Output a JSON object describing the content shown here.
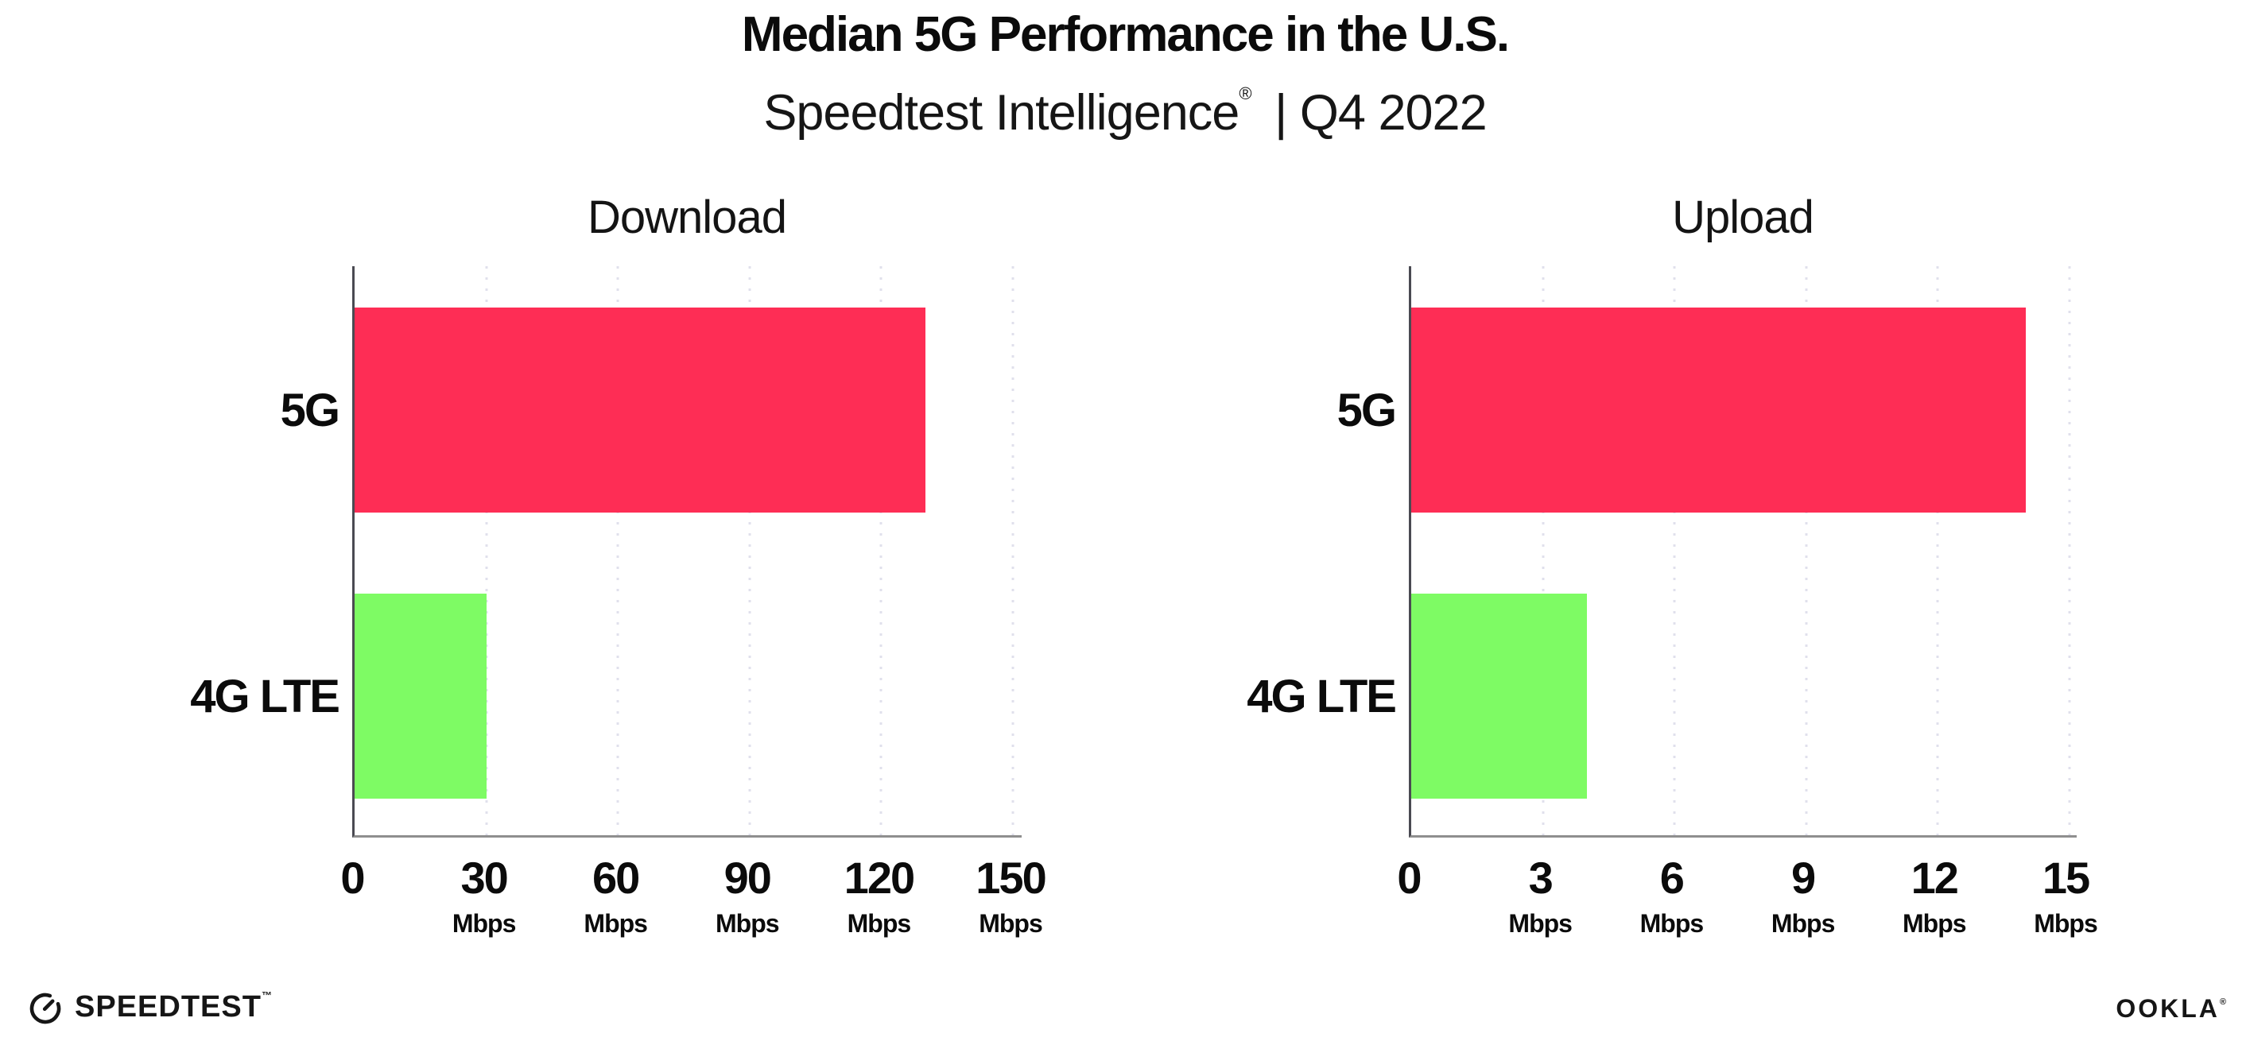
{
  "header": {
    "title": "Median 5G Performance in the U.S.",
    "subtitle_brand": "Speedtest Intelligence",
    "subtitle_reg": "®",
    "subtitle_rest": "| Q4 2022"
  },
  "colors": {
    "bar_5g": "#FE2D55",
    "bar_4g_lte": "#7EFB64",
    "axis_x": "#8F8F8F",
    "axis_y": "#4A4A52",
    "gridline": "#E0E0EC",
    "text": "#0B0B0B"
  },
  "chart_data": [
    {
      "type": "bar",
      "orientation": "horizontal",
      "title": "Download",
      "unit": "Mbps",
      "categories": [
        "5G",
        "4G LTE"
      ],
      "values": [
        130,
        30
      ],
      "xlim": [
        0,
        150
      ],
      "xticks": [
        0,
        30,
        60,
        90,
        120,
        150
      ],
      "bar_colors": [
        "#FE2D55",
        "#7EFB64"
      ],
      "grid": "dotted-vertical",
      "legend": "none"
    },
    {
      "type": "bar",
      "orientation": "horizontal",
      "title": "Upload",
      "unit": "Mbps",
      "categories": [
        "5G",
        "4G LTE"
      ],
      "values": [
        14,
        4
      ],
      "xlim": [
        0,
        15
      ],
      "xticks": [
        0,
        3,
        6,
        9,
        12,
        15
      ],
      "bar_colors": [
        "#FE2D55",
        "#7EFB64"
      ],
      "grid": "dotted-vertical",
      "legend": "none"
    }
  ],
  "footer": {
    "speedtest_label": "SPEEDTEST",
    "speedtest_mark": "™",
    "ookla_label": "OOKLA",
    "ookla_mark": "®"
  }
}
